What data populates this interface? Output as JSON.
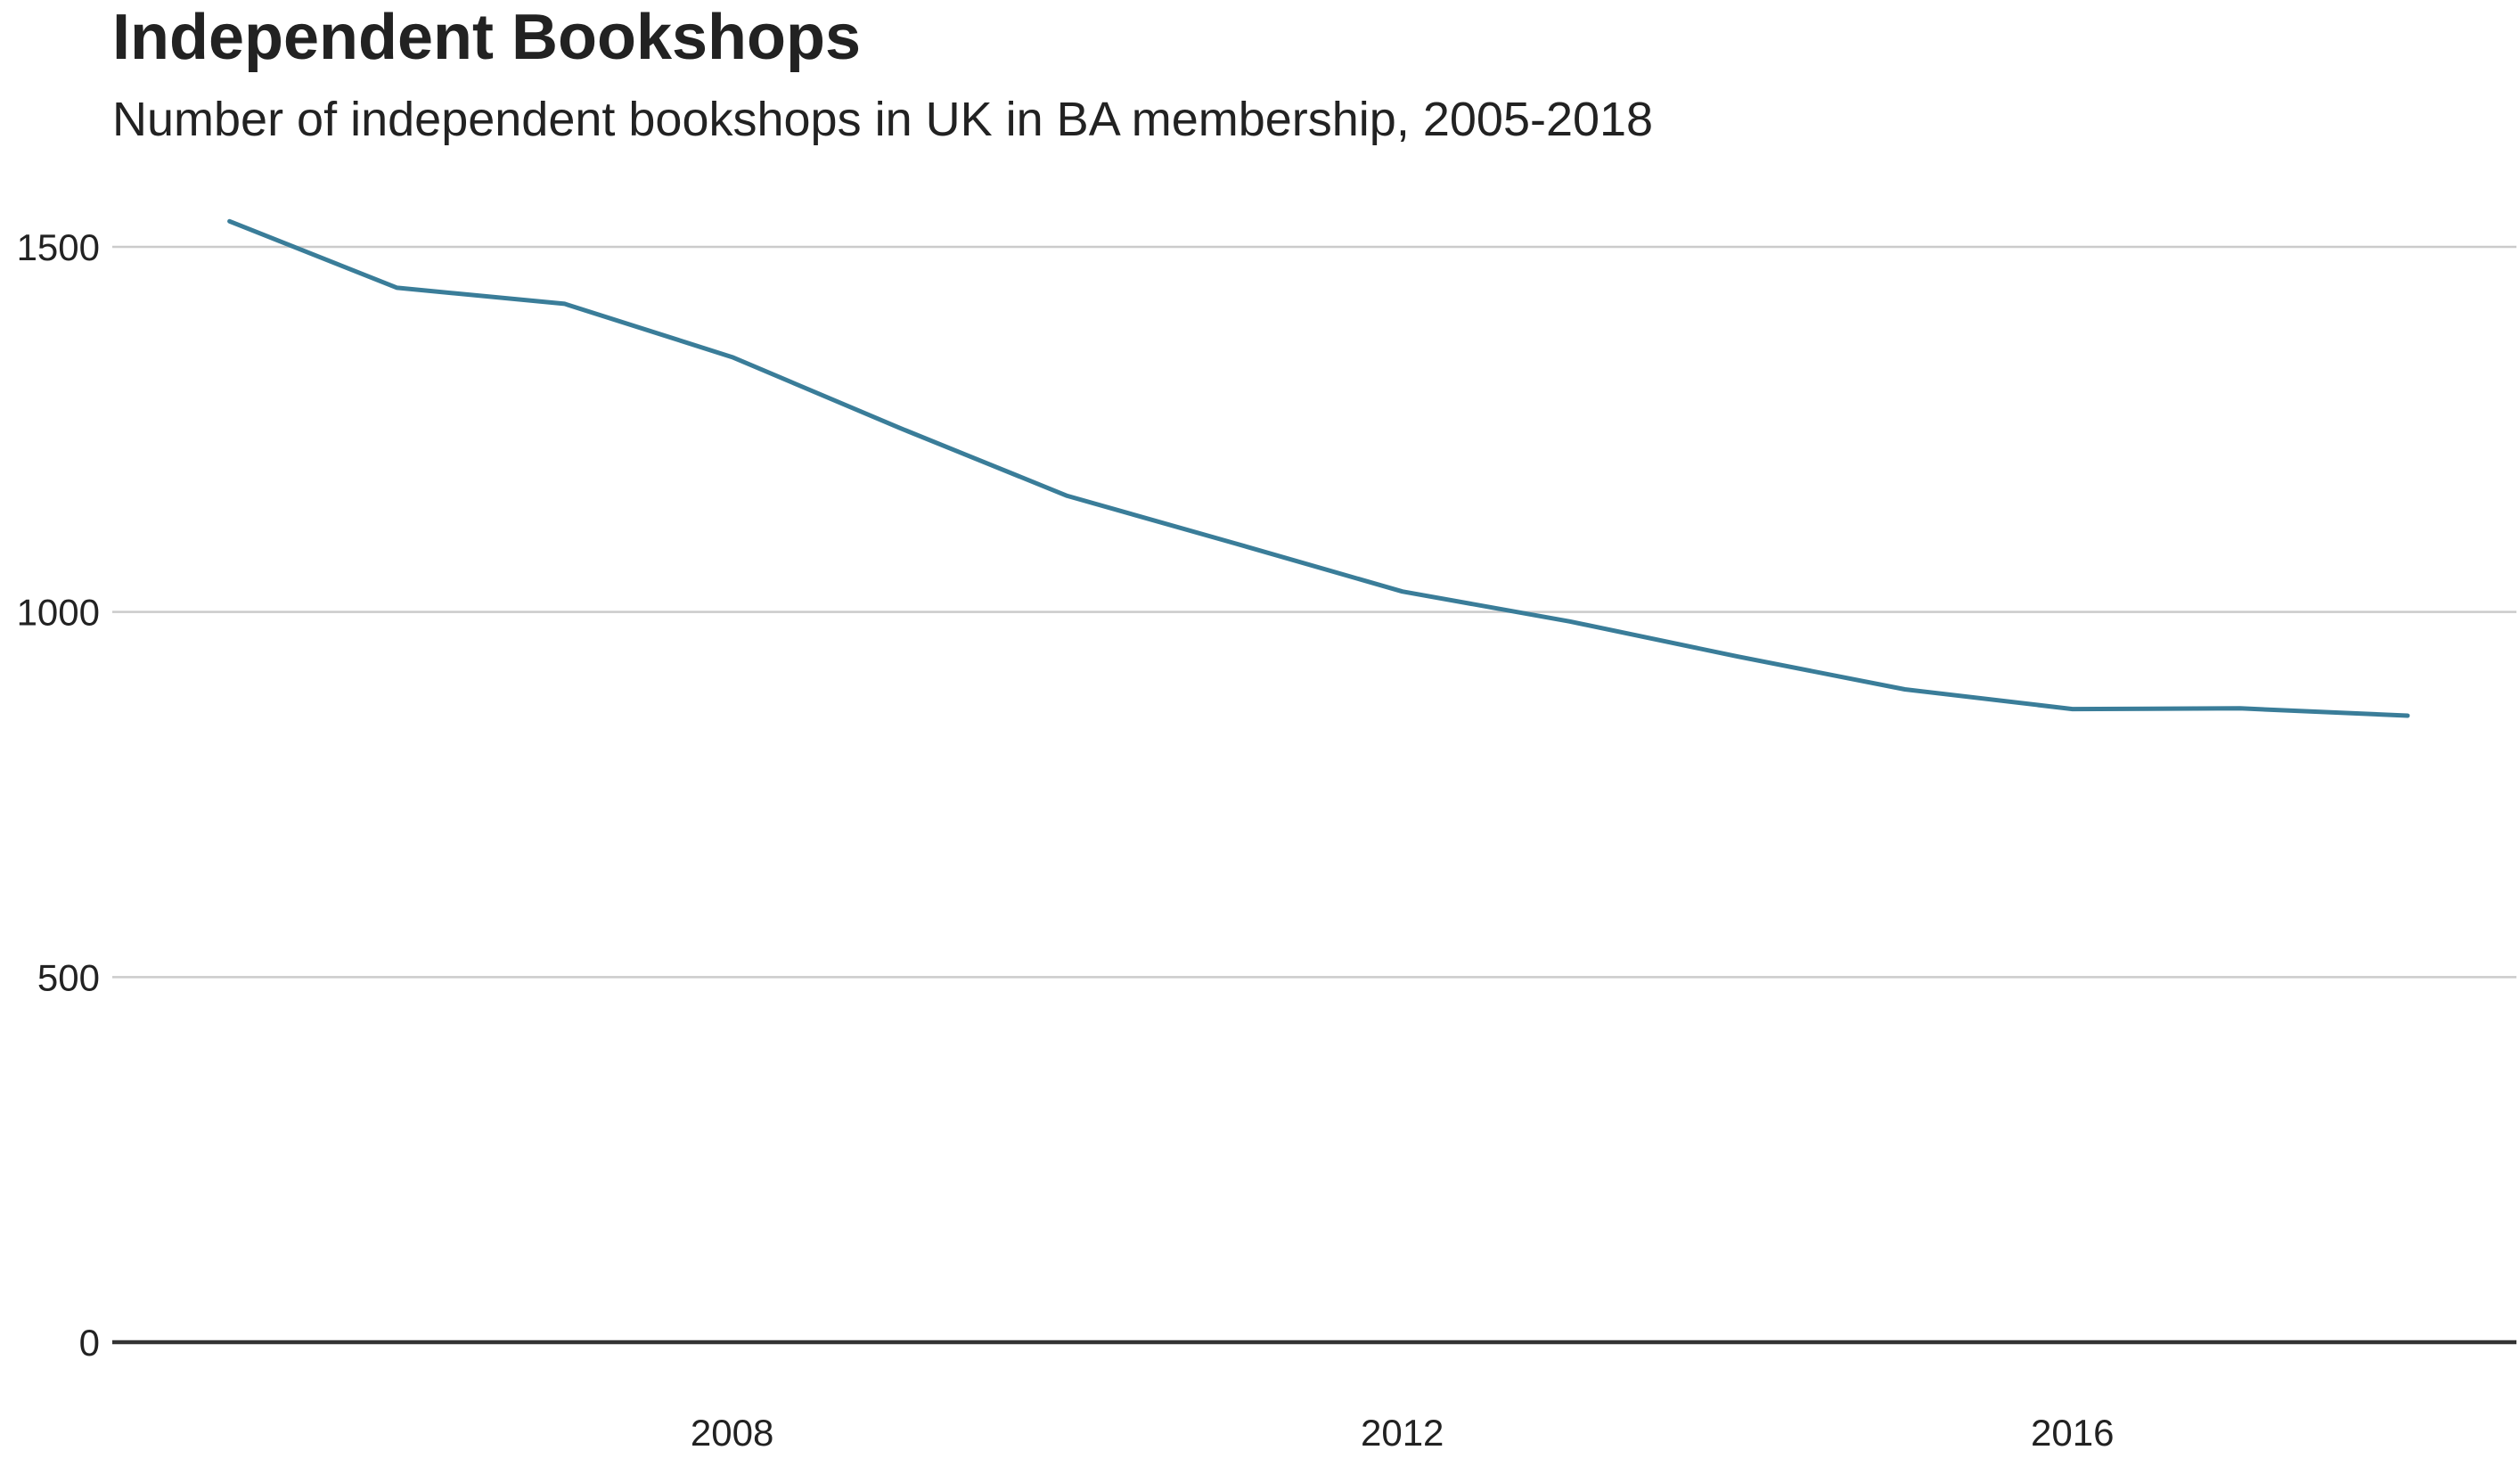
{
  "chart_data": {
    "type": "line",
    "title": "Independent Bookshops",
    "subtitle": "Number of independent bookshops in UK in BA membership, 2005-2018",
    "xlabel": "",
    "ylabel": "",
    "x": [
      2005,
      2006,
      2007,
      2008,
      2009,
      2010,
      2011,
      2012,
      2013,
      2014,
      2015,
      2016,
      2017,
      2018
    ],
    "series": [
      {
        "values": [
          1535,
          1444,
          1422,
          1349,
          1252,
          1159,
          1094,
          1028,
          987,
          939,
          894,
          867,
          868,
          858
        ]
      }
    ],
    "xlim": [
      2004.3,
      2018.65
    ],
    "ylim": [
      0,
      1600
    ],
    "x_ticks": [
      2008,
      2012,
      2016
    ],
    "y_ticks": [
      0,
      500,
      1000,
      1500
    ],
    "grid": "horizontal",
    "legend": "none",
    "colors": {
      "line": "#3a7d99",
      "grid": "#cbcbcb",
      "baseline": "#333333",
      "text": "#222222"
    }
  }
}
